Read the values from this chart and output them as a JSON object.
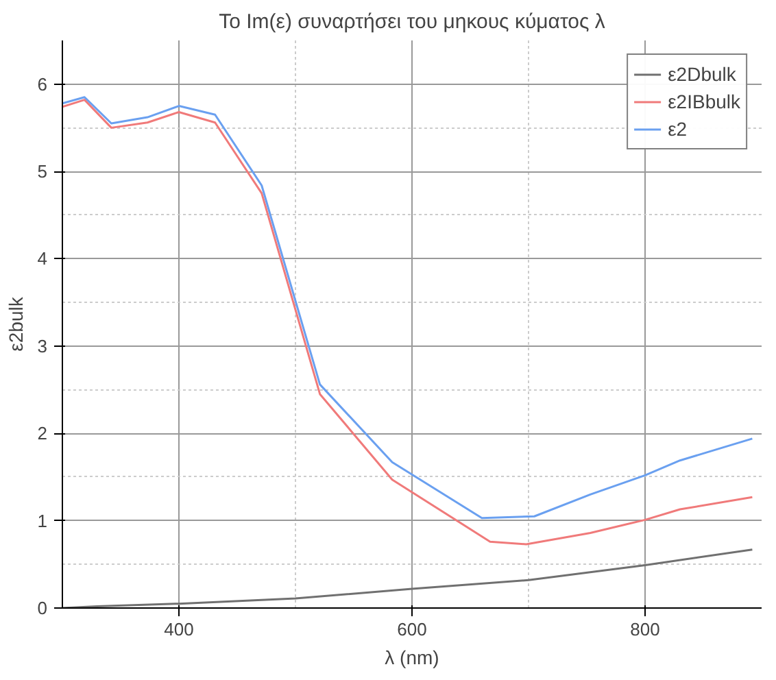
{
  "chart_data": {
    "type": "line",
    "title": "Το Im(ε) συναρτήσει του μηκους κύματος λ",
    "xlabel": "λ (nm)",
    "ylabel": "ε2bulk",
    "xlim": [
      300,
      900
    ],
    "ylim": [
      0,
      6.5
    ],
    "xticks": [
      {
        "value": 400,
        "label": "400"
      },
      {
        "value": 500,
        "label": null
      },
      {
        "value": 600,
        "label": "600"
      },
      {
        "value": 700,
        "label": null
      },
      {
        "value": 800,
        "label": "800"
      }
    ],
    "yticks": [
      0,
      {
        "value": 0.5,
        "label": null
      },
      1,
      {
        "value": 1.5,
        "label": null
      },
      2,
      {
        "value": 2.5,
        "label": null
      },
      3,
      {
        "value": 3.5,
        "label": null
      },
      4,
      {
        "value": 4.5,
        "label": null
      },
      5,
      {
        "value": 5.5,
        "label": null
      },
      6
    ],
    "grid": true,
    "legend": "top right",
    "line_style": "solid",
    "marker": "none",
    "series": [
      {
        "name": "ε2Dbulk",
        "color": "#707070",
        "x": [
          300,
          330,
          400,
          500,
          600,
          700,
          800,
          892
        ],
        "values": [
          0.0,
          0.02,
          0.05,
          0.11,
          0.22,
          0.32,
          0.49,
          0.67
        ]
      },
      {
        "name": "ε2IBbulk",
        "color": "#f07a7a",
        "x": [
          300,
          319,
          342,
          373,
          400,
          431,
          471,
          521,
          583,
          667,
          698,
          753,
          800,
          830,
          892
        ],
        "values": [
          5.74,
          5.82,
          5.5,
          5.56,
          5.68,
          5.56,
          4.75,
          2.45,
          1.47,
          0.76,
          0.73,
          0.86,
          1.01,
          1.13,
          1.27
        ]
      },
      {
        "name": "ε2",
        "color": "#6aa0f0",
        "x": [
          300,
          319,
          342,
          373,
          400,
          431,
          471,
          521,
          583,
          660,
          705,
          753,
          800,
          830,
          892
        ],
        "values": [
          5.78,
          5.85,
          5.55,
          5.62,
          5.75,
          5.65,
          4.84,
          2.56,
          1.67,
          1.03,
          1.05,
          1.3,
          1.52,
          1.69,
          1.94
        ]
      }
    ]
  }
}
